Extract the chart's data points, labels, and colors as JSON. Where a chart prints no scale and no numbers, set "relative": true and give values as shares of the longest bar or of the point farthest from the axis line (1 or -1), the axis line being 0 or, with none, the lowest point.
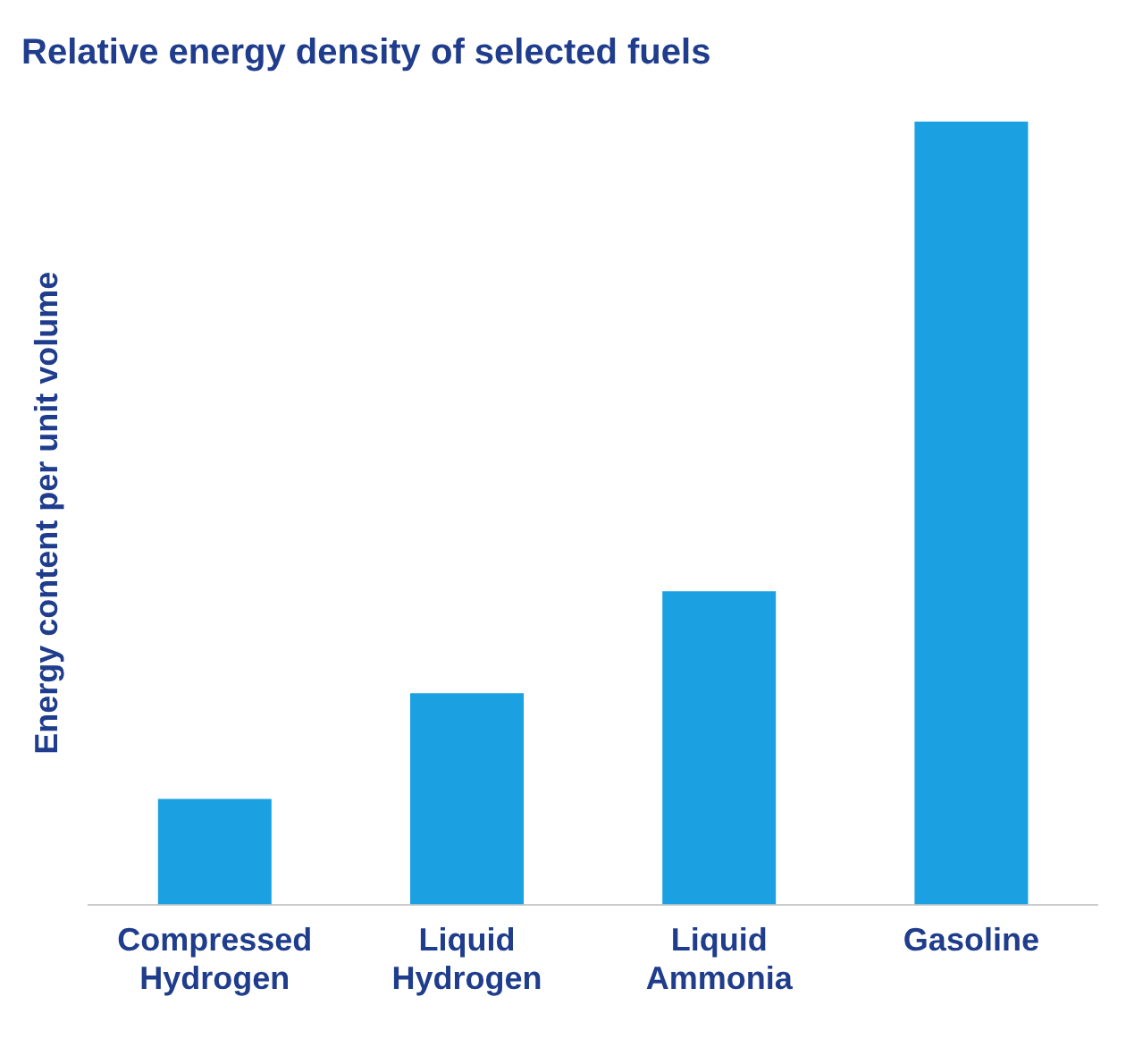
{
  "chart_data": {
    "type": "bar",
    "title": "Relative energy density of selected fuels",
    "ylabel": "Energy content per unit volume",
    "categories": [
      "Compressed Hydrogen",
      "Liquid Hydrogen",
      "Liquid Ammonia",
      "Gasoline"
    ],
    "values": [
      0.135,
      0.27,
      0.4,
      1
    ],
    "color": "#1ba1e2",
    "relative": true,
    "grid": false,
    "legend": false
  }
}
